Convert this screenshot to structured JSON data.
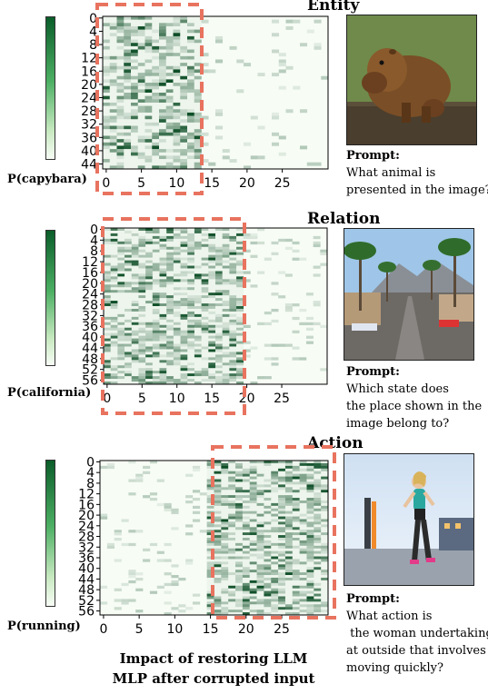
{
  "caption": {
    "line1": "Impact of restoring LLM",
    "line2": "MLP after corrupted input"
  },
  "colors": {
    "cmap_low": "#f7fcf5",
    "cmap_high": "#00441b",
    "highlight_box": "#e8735f"
  },
  "chart_data": [
    {
      "type": "heatmap",
      "title": "Entity",
      "colorbar_label": "P(capybara)",
      "rows": 46,
      "cols": 32,
      "y_ticks": [
        "0",
        "4",
        "8",
        "12",
        "16",
        "20",
        "24",
        "28",
        "32",
        "36",
        "40",
        "44"
      ],
      "x_ticks": [
        "0",
        "5",
        "10",
        "15",
        "20",
        "25"
      ],
      "highlight_cols": [
        0,
        13
      ],
      "hot_cols": [
        0,
        13
      ],
      "photo": "capybara-photo",
      "prompt": {
        "header": "Prompt:",
        "lines": [
          "What animal is",
          "presented in the image?"
        ]
      }
    },
    {
      "type": "heatmap",
      "title": "Relation",
      "colorbar_label": "P(california)",
      "rows": 58,
      "cols": 32,
      "y_ticks": [
        "0",
        "4",
        "8",
        "12",
        "16",
        "20",
        "24",
        "28",
        "32",
        "36",
        "40",
        "44",
        "48",
        "52",
        "56"
      ],
      "x_ticks": [
        "0",
        "5",
        "10",
        "15",
        "20",
        "25"
      ],
      "highlight_cols": [
        0,
        19
      ],
      "hot_cols": [
        0,
        19
      ],
      "photo": "street-photo",
      "prompt": {
        "header": "Prompt:",
        "lines": [
          "Which state does",
          "the place shown in the",
          "image belong to?"
        ]
      }
    },
    {
      "type": "heatmap",
      "title": "Action",
      "colorbar_label": "P(running)",
      "rows": 58,
      "cols": 32,
      "y_ticks": [
        "0",
        "4",
        "8",
        "12",
        "16",
        "20",
        "24",
        "28",
        "32",
        "36",
        "40",
        "44",
        "48",
        "52",
        "56"
      ],
      "x_ticks": [
        "0",
        "5",
        "10",
        "15",
        "20",
        "25"
      ],
      "highlight_cols": [
        15,
        31
      ],
      "hot_cols": [
        15,
        31
      ],
      "photo": "runner-photo",
      "prompt": {
        "header": "Prompt:",
        "lines": [
          "What action is",
          " the woman undertaking",
          "at outside that involves",
          "moving quickly?"
        ]
      }
    }
  ]
}
